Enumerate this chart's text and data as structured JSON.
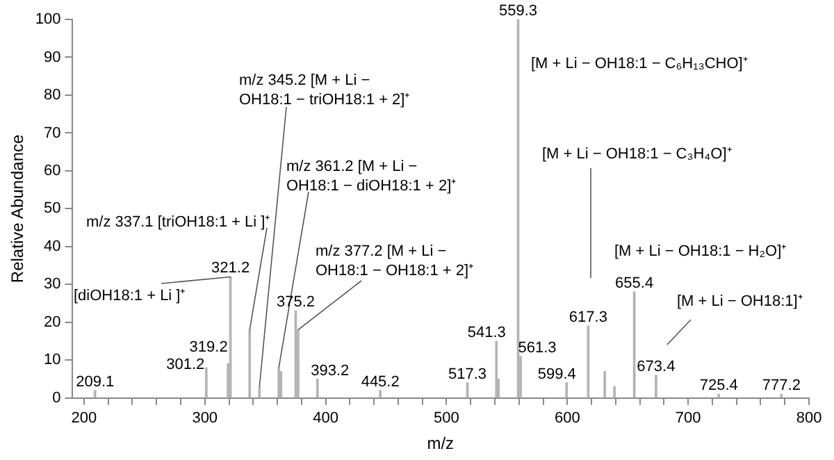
{
  "chart_data": {
    "type": "bar",
    "xlabel": "m/z",
    "ylabel": "Relative Abundance",
    "x": [
      209.1,
      301.2,
      319.2,
      321.2,
      337.1,
      345.2,
      361.2,
      363,
      375.2,
      377.2,
      393.2,
      445.2,
      517.3,
      541.3,
      543,
      559.3,
      561.3,
      599.4,
      617.3,
      631,
      639,
      655.4,
      673.4,
      725.4,
      777.2
    ],
    "values": [
      2,
      8,
      9,
      32,
      18,
      3,
      8,
      7,
      23,
      18,
      5,
      2,
      4,
      15,
      5,
      100,
      11,
      4,
      19,
      7,
      3,
      28,
      6,
      1,
      1
    ],
    "color": "#b4b4b4",
    "xlim": [
      190,
      800
    ],
    "xticks": [
      200,
      {
        "value": 220,
        "label": null
      },
      {
        "value": 240,
        "label": null
      },
      {
        "value": 260,
        "label": null
      },
      {
        "value": 280,
        "label": null
      },
      300,
      {
        "value": 320,
        "label": null
      },
      {
        "value": 340,
        "label": null
      },
      {
        "value": 360,
        "label": null
      },
      {
        "value": 380,
        "label": null
      },
      400,
      {
        "value": 420,
        "label": null
      },
      {
        "value": 440,
        "label": null
      },
      {
        "value": 460,
        "label": null
      },
      {
        "value": 480,
        "label": null
      },
      500,
      {
        "value": 520,
        "label": null
      },
      {
        "value": 540,
        "label": null
      },
      {
        "value": 560,
        "label": null
      },
      {
        "value": 580,
        "label": null
      },
      600,
      {
        "value": 620,
        "label": null
      },
      {
        "value": 640,
        "label": null
      },
      {
        "value": 660,
        "label": null
      },
      {
        "value": 680,
        "label": null
      },
      700,
      {
        "value": 720,
        "label": null
      },
      {
        "value": 740,
        "label": null
      },
      {
        "value": 760,
        "label": null
      },
      {
        "value": 780,
        "label": null
      },
      800
    ],
    "ylim": [
      0,
      100
    ],
    "yticks": [
      0,
      10,
      20,
      30,
      40,
      50,
      60,
      70,
      80,
      90,
      100
    ],
    "annotations": [
      {
        "text": "m/z 345.2 [M + Li − OH18:1 − triOH18:1 + 2]⁺",
        "x": 345.2,
        "y": 3
      },
      {
        "text": "m/z 361.2 [M + Li − OH18:1 − diOH18:1 + 2]⁺",
        "x": 361.2,
        "y": 8
      },
      {
        "text": "m/z 337.1 [triOH18:1 + Li ]⁺",
        "x": 337.1,
        "y": 18
      },
      {
        "text": "m/z 377.2 [M + Li − OH18:1 − OH18:1 + 2]⁺",
        "x": 377.2,
        "y": 18
      },
      {
        "text": "[diOH18:1 + Li ]⁺",
        "x": 321.2,
        "y": 32
      },
      "[M + Li − OH18:1 − C₆H₁₃CHO]⁺",
      "[M + Li − OH18:1 − C₃H₄O]⁺",
      "[M + Li − OH18:1 − H₂O]⁺",
      "[M + Li − OH18:1]⁺",
      {
        "text": "209.1",
        "x": 209.1,
        "y": 2
      },
      {
        "text": "301.2",
        "x": 301.2,
        "y": 8
      },
      {
        "text": "319.2",
        "x": 319.2,
        "y": 9
      },
      {
        "text": "321.2",
        "x": 321.2,
        "y": 32
      },
      {
        "text": "375.2",
        "x": 375.2,
        "y": 23
      },
      {
        "text": "393.2",
        "x": 393.2,
        "y": 5
      },
      {
        "text": "445.2",
        "x": 445.2,
        "y": 2
      },
      {
        "text": "517.3",
        "x": 517.3,
        "y": 4
      },
      {
        "text": "541.3",
        "x": 541.3,
        "y": 15
      },
      {
        "text": "559.3",
        "x": 559.3,
        "y": 100
      },
      {
        "text": "561.3",
        "x": 561.3,
        "y": 11
      },
      {
        "text": "599.4",
        "x": 599.4,
        "y": 4
      },
      {
        "text": "617.3",
        "x": 617.3,
        "y": 19
      },
      {
        "text": "655.4",
        "x": 655.4,
        "y": 28
      },
      {
        "text": "673.4",
        "x": 673.4,
        "y": 6
      },
      {
        "text": "725.4",
        "x": 725.4,
        "y": 1
      },
      {
        "text": "777.2",
        "x": 777.2,
        "y": 1
      }
    ],
    "grid": false,
    "legend": false
  }
}
